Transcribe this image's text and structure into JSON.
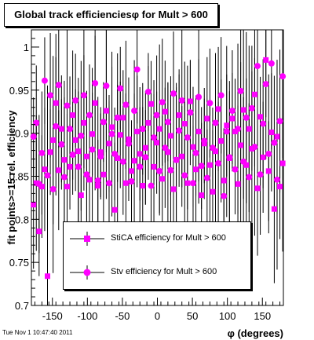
{
  "chart_data": {
    "type": "scatter",
    "title": "Global track efficienciesφ for Mult > 600",
    "xlabel": "φ (degrees)",
    "ylabel": "fit points>=15 rel. efficiency",
    "xlim": [
      -180,
      180
    ],
    "ylim": [
      0.7,
      1.02
    ],
    "x_ticks": [
      -150,
      -100,
      -50,
      0,
      50,
      100,
      150
    ],
    "y_ticks": [
      0.7,
      0.75,
      0.8,
      0.85,
      0.9,
      0.95,
      1
    ],
    "grid": false,
    "legend_position": "bottom-center",
    "marker_color": "#ff00ff",
    "series": [
      {
        "name": "StiCA efficiency  for Mult > 600",
        "marker": "square",
        "x": [
          -177,
          -173,
          -169,
          -165,
          -161,
          -157,
          -153,
          -149,
          -145,
          -141,
          -137,
          -133,
          -129,
          -125,
          -121,
          -117,
          -113,
          -109,
          -105,
          -101,
          -97,
          -93,
          -89,
          -85,
          -81,
          -77,
          -73,
          -69,
          -65,
          -61,
          -57,
          -53,
          -49,
          -45,
          -41,
          -37,
          -33,
          -29,
          -25,
          -21,
          -17,
          -13,
          -9,
          -5,
          -1,
          3,
          7,
          11,
          15,
          19,
          23,
          27,
          31,
          35,
          39,
          43,
          47,
          51,
          55,
          59,
          63,
          67,
          71,
          75,
          79,
          83,
          87,
          91,
          95,
          99,
          103,
          107,
          111,
          115,
          119,
          123,
          127,
          131,
          135,
          139,
          143,
          147,
          151,
          155,
          159,
          163,
          167,
          171,
          175,
          179
        ],
        "y": [
          0.817,
          0.842,
          0.786,
          0.838,
          0.858,
          0.734,
          0.878,
          0.892,
          0.935,
          0.857,
          0.905,
          0.869,
          0.838,
          0.861,
          0.921,
          0.892,
          0.879,
          0.828,
          0.912,
          0.873,
          0.846,
          0.899,
          0.935,
          0.839,
          0.878,
          0.852,
          0.926,
          0.888,
          0.907,
          0.811,
          0.871,
          0.898,
          0.918,
          0.842,
          0.893,
          0.856,
          0.868,
          0.902,
          0.876,
          0.839,
          0.883,
          0.912,
          0.934,
          0.861,
          0.889,
          0.905,
          0.847,
          0.925,
          0.878,
          0.897,
          0.835,
          0.869,
          0.921,
          0.873,
          0.911,
          0.842,
          0.937,
          0.884,
          0.858,
          0.902,
          0.828,
          0.888,
          0.917,
          0.863,
          0.832,
          0.879,
          0.928,
          0.891,
          0.845,
          0.909,
          0.871,
          0.917,
          0.902,
          0.841,
          0.886,
          0.927,
          0.863,
          0.905,
          0.882,
          0.945,
          0.836,
          0.919,
          0.872,
          0.985,
          0.856,
          0.901,
          0.812,
          0.896,
          0.838,
          0.865
        ]
      },
      {
        "name": "Stv efficiency  for Mult > 600",
        "marker": "circle",
        "x": [
          -177,
          -173,
          -169,
          -165,
          -161,
          -157,
          -153,
          -149,
          -145,
          -141,
          -137,
          -133,
          -129,
          -125,
          -121,
          -117,
          -113,
          -109,
          -105,
          -101,
          -97,
          -93,
          -89,
          -85,
          -81,
          -77,
          -73,
          -69,
          -65,
          -61,
          -57,
          -53,
          -49,
          -45,
          -41,
          -37,
          -33,
          -29,
          -25,
          -21,
          -17,
          -13,
          -9,
          -5,
          -1,
          3,
          7,
          11,
          15,
          19,
          23,
          27,
          31,
          35,
          39,
          43,
          47,
          51,
          55,
          59,
          63,
          67,
          71,
          75,
          79,
          83,
          87,
          91,
          95,
          99,
          103,
          107,
          111,
          115,
          119,
          123,
          127,
          131,
          135,
          139,
          143,
          147,
          151,
          155,
          159,
          163,
          167,
          171,
          175,
          179
        ],
        "y": [
          0.896,
          0.912,
          0.841,
          0.877,
          0.961,
          0.851,
          0.944,
          0.835,
          0.908,
          0.956,
          0.887,
          0.849,
          0.932,
          0.905,
          0.875,
          0.938,
          0.861,
          0.897,
          0.944,
          0.852,
          0.921,
          0.881,
          0.958,
          0.845,
          0.873,
          0.913,
          0.955,
          0.842,
          0.899,
          0.876,
          0.918,
          0.952,
          0.867,
          0.933,
          0.888,
          0.844,
          0.926,
          0.974,
          0.861,
          0.905,
          0.872,
          0.948,
          0.839,
          0.895,
          0.921,
          0.856,
          0.936,
          0.883,
          0.913,
          0.857,
          0.946,
          0.869,
          0.903,
          0.938,
          0.851,
          0.895,
          0.924,
          0.842,
          0.877,
          0.942,
          0.862,
          0.891,
          0.848,
          0.935,
          0.883,
          0.912,
          0.865,
          0.944,
          0.827,
          0.902,
          0.872,
          0.926,
          0.858,
          0.905,
          0.949,
          0.867,
          0.918,
          0.849,
          0.929,
          0.884,
          0.978,
          0.852,
          0.911,
          0.957,
          0.876,
          0.981,
          0.889,
          0.846,
          0.914,
          0.966
        ]
      }
    ]
  },
  "footer": {
    "timestamp": "Tue Nov  1 10:47:40 2011"
  }
}
